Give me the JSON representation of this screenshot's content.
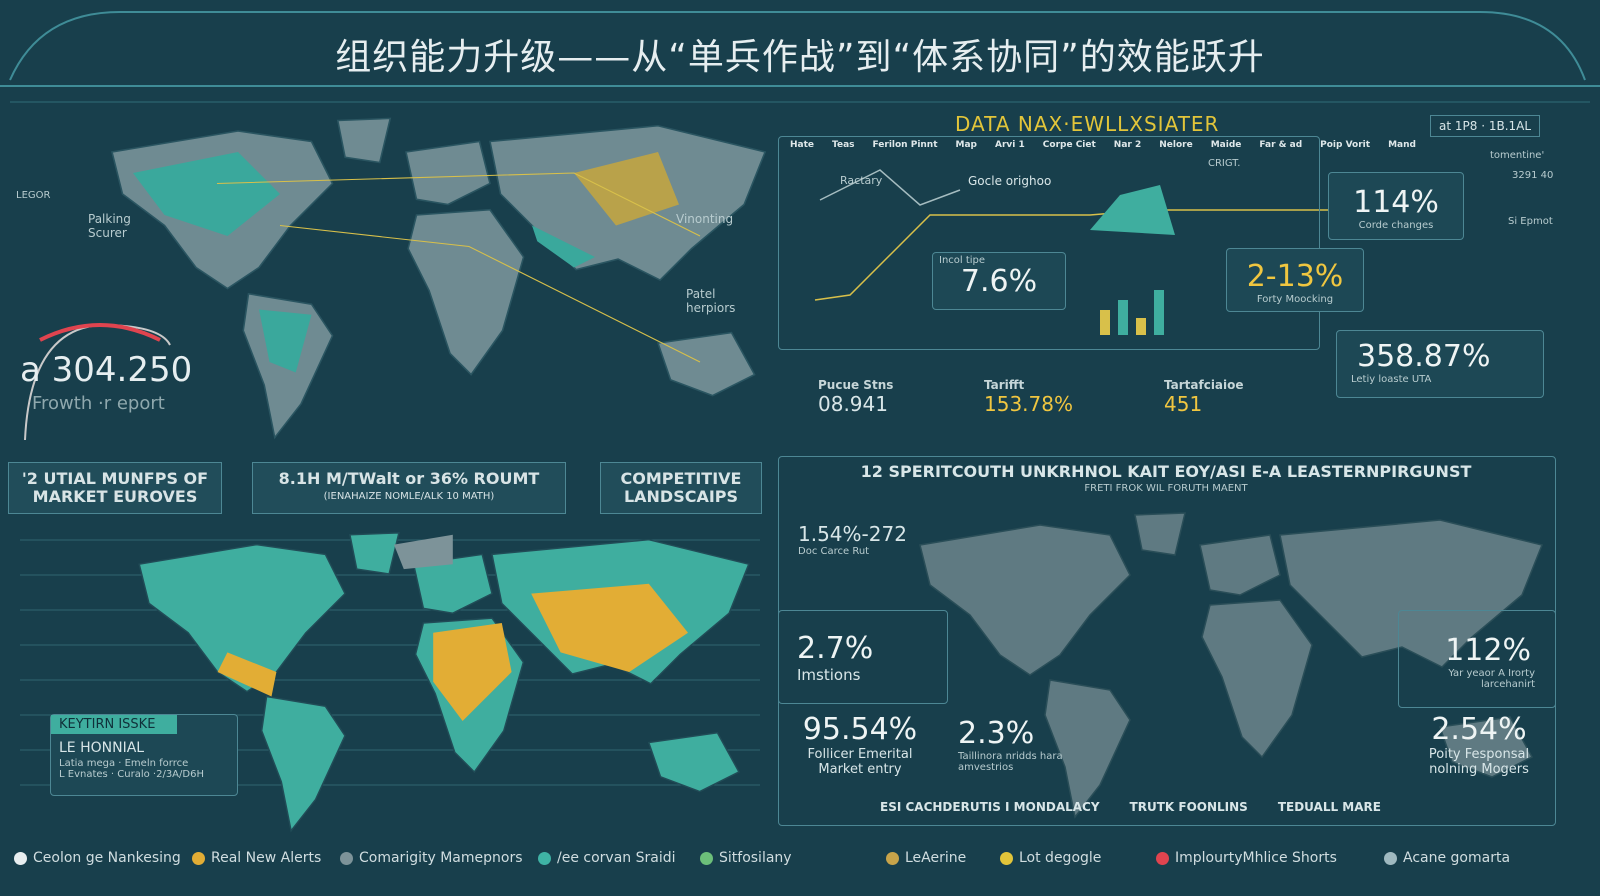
{
  "header": {
    "title": "组织能力升级——从“单兵作战”到“体系协同”的效能跃升"
  },
  "left_top": {
    "side_label": "LEGOR",
    "map_labels": [
      "Palking Scurer",
      "Vinonting",
      "Patel herpiors"
    ],
    "gauge": {
      "value": "a 304.250",
      "label": "Frowth ·r eport"
    }
  },
  "tabs": [
    "'2 UTIAL MUNFPS OF MARKET EUROVES",
    "8.1H M/TWalt or 36% ROUMT",
    "COMPETITIVE LANDSCAIPS"
  ],
  "tab_sub": "(IENAHAIZE NOMLE/ALK 10 MATH)",
  "left_bottom": {
    "legend_title": "KEYTIRN ISSKE",
    "legend_items": [
      "LE HONNIAL",
      "Latia mega · Emeln forrce",
      "L Evnates · Curalo ·2/3A/D6H"
    ]
  },
  "top_right": {
    "title": "DATA NAX·EWLLXSIATER",
    "badge": "at 1P8 · 1B.1AL",
    "columns": [
      "Hate",
      "Teas",
      "Ferilon Pinnt",
      "Map",
      "Arvi 1",
      "Corpe Ciet",
      "Nar 2",
      "Nelore",
      "Maide",
      "Far & ad",
      "Poip Vorit",
      "Mand"
    ],
    "chart_labels": [
      "Ractary",
      "Gocle orighoo",
      "CRIGT."
    ],
    "kpis": [
      {
        "value": "7.6%",
        "label": "Incol tipe"
      },
      {
        "value": "114%",
        "label": "Corde changes"
      },
      {
        "value": "2-13%",
        "label": "Forty Moocking"
      },
      {
        "value": "358.87%",
        "label": "Letiy loaste UTA"
      }
    ],
    "stats": [
      {
        "label": "Pucue Stns",
        "value": "08.941"
      },
      {
        "label": "Tarifft",
        "value": "153.78%"
      },
      {
        "label": "Tartafciaioe",
        "value": "451"
      }
    ],
    "edge_labels": [
      "tomentine'",
      "3291 40",
      "Si Epmot"
    ]
  },
  "right_panel": {
    "title": "12 SPERITCOUTH UNKRHNOL KAIT EOY/ASI E-A LEASTERNPIRGUNST",
    "subtitle": "FRETI FROK WIL FORUTH MAENT",
    "kpis": [
      {
        "value": "1.54%-272",
        "label": "Doc Carce Rut"
      },
      {
        "value": "2.7%",
        "label": "Imstions"
      },
      {
        "value": "95.54%",
        "label": "Follicer Emerital Market entry"
      },
      {
        "value": "2.3%",
        "label": "Taillinora nridds hara amvestrios"
      },
      {
        "value": "112%",
        "label": "Yar yeaor A Irorty larcehanirt"
      },
      {
        "value": "2.54%",
        "label": "Poity Fesponsal nolning Mogers"
      }
    ],
    "footer": [
      "ESI CACHDERUTIS I MONDALACY",
      "TRUTK FOONLINS",
      "TEDUALL MARE"
    ]
  },
  "legend": [
    {
      "name": "Ceolon ge Nankesing",
      "color": "#e8eef0"
    },
    {
      "name": "Real New Alerts",
      "color": "#e2ad35"
    },
    {
      "name": "Comarigity Mamepnors",
      "color": "#7d9399"
    },
    {
      "name": "/ee corvan Sraidi",
      "color": "#3fb3a5"
    },
    {
      "name": "Sitfosilany",
      "color": "#6cbf7a"
    },
    {
      "name": "LeAerine",
      "color": "#c8a44a"
    },
    {
      "name": "Lot degogle",
      "color": "#e2c53a"
    },
    {
      "name": "ImplourtyMhlice Shorts",
      "color": "#e0444f"
    },
    {
      "name": "Acane gomarta",
      "color": "#9fb9c0"
    }
  ]
}
